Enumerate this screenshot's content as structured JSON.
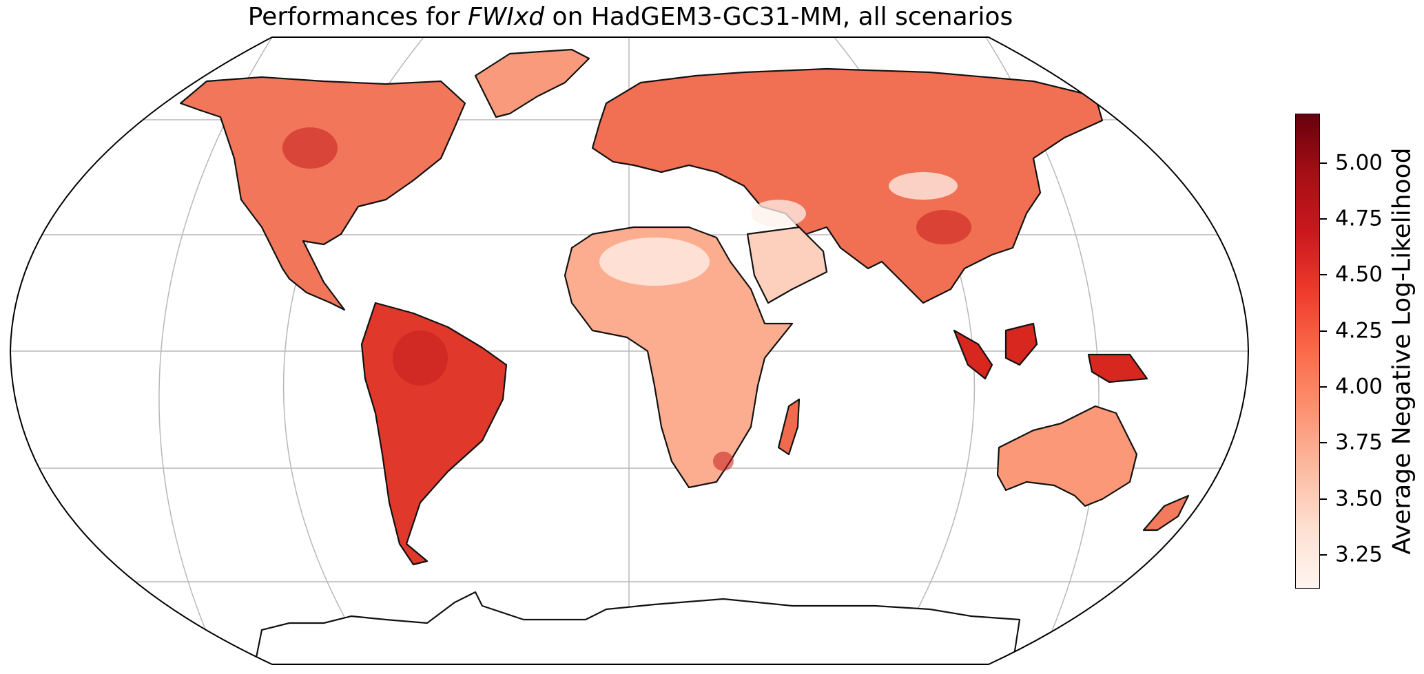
{
  "title": {
    "prefix": "Performances for ",
    "variable": "FWIxd",
    "suffix": " on HadGEM3-GC31-MM, all scenarios"
  },
  "map": {
    "projection": "Robinson",
    "gridlines": true,
    "coastlines": true,
    "colormap": "Reds"
  },
  "colorbar": {
    "label": "Average Negative Log-Likelihood",
    "range": [
      3.1,
      5.22
    ],
    "ticks": [
      "3.25",
      "3.50",
      "3.75",
      "4.00",
      "4.25",
      "4.50",
      "4.75",
      "5.00"
    ],
    "colors": [
      "#fff5f0",
      "#fee0d2",
      "#fcbba1",
      "#fc9272",
      "#fb6a4a",
      "#ef3b2c",
      "#cb181d",
      "#a50f15",
      "#67000d"
    ]
  }
}
